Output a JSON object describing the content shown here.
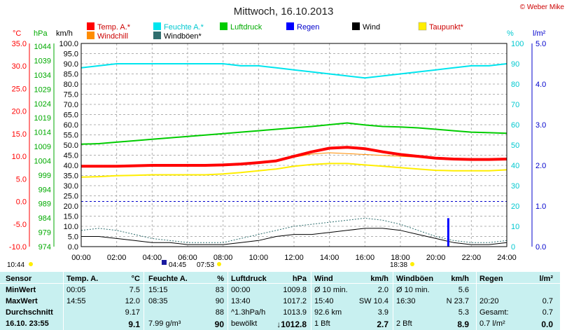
{
  "title": "Mittwoch, 16.10.2013",
  "copyright": "© Weber Mike",
  "unit_labels": {
    "temp": "°C",
    "press": "hPa",
    "wind": "km/h",
    "hum": "%",
    "rain": "l/m²"
  },
  "legend": [
    {
      "label": "Temp. A.*",
      "color": "#ff0000"
    },
    {
      "label": "Feuchte A.*",
      "color": "#00e5ee"
    },
    {
      "label": "Luftdruck",
      "color": "#00cc00"
    },
    {
      "label": "Regen",
      "color": "#0000ff"
    },
    {
      "label": "Wind",
      "color": "#000000"
    },
    {
      "label": "Taupunkt*",
      "color": "#ffee00"
    },
    {
      "label": "Windchill",
      "color": "#ff8c00"
    },
    {
      "label": "Windböen*",
      "color": "#2f6f6f"
    }
  ],
  "sun_times": {
    "sunrise": "07:53",
    "sunset": "18:38",
    "moonrise": "04:45",
    "moonset": "10:44"
  },
  "chart_data": {
    "type": "line",
    "x": [
      0,
      1,
      2,
      3,
      4,
      5,
      6,
      7,
      8,
      9,
      10,
      11,
      12,
      13,
      14,
      15,
      16,
      17,
      18,
      19,
      20,
      21,
      22,
      23,
      24
    ],
    "xtick_labels": [
      "00:00",
      "02:00",
      "04:00",
      "06:00",
      "08:00",
      "10:00",
      "12:00",
      "14:00",
      "16:00",
      "18:00",
      "20:00",
      "22:00",
      "24:00"
    ],
    "axes": {
      "temp": {
        "label": "°C",
        "range": [
          -10,
          35
        ],
        "ticks": [
          "35.0",
          "30.0",
          "25.0",
          "20.0",
          "15.0",
          "10.0",
          "5.0",
          "0.0",
          "-5.0",
          "-10.0"
        ]
      },
      "press": {
        "label": "hPa",
        "range": [
          974,
          1045
        ],
        "ticks": [
          "1044",
          "1039",
          "1034",
          "1029",
          "1024",
          "1019",
          "1014",
          "1009",
          "1004",
          "999",
          "994",
          "989",
          "984",
          "979",
          "974"
        ]
      },
      "wind": {
        "label": "km/h",
        "range": [
          0,
          100
        ],
        "ticks": [
          "100.0",
          "95.0",
          "90.0",
          "85.0",
          "80.0",
          "75.0",
          "70.0",
          "65.0",
          "60.0",
          "55.0",
          "50.0",
          "45.0",
          "40.0",
          "35.0",
          "30.0",
          "25.0",
          "20.0",
          "15.0",
          "10.0",
          "5.0",
          "0.0"
        ]
      },
      "hum": {
        "label": "%",
        "range": [
          0,
          100
        ],
        "ticks": [
          "100",
          "90",
          "80",
          "70",
          "60",
          "50",
          "40",
          "30",
          "20",
          "10",
          "0"
        ]
      },
      "rain": {
        "label": "l/m²",
        "range": [
          0,
          5
        ],
        "ticks": [
          "5.0",
          "4.0",
          "3.0",
          "2.0",
          "1.0",
          "0.0"
        ]
      }
    },
    "series": [
      {
        "name": "Temp. A.*",
        "axis": "temp",
        "color": "#ff0000",
        "values": [
          7.8,
          7.8,
          7.8,
          7.9,
          8.0,
          8.0,
          8.0,
          8.0,
          8.1,
          8.3,
          8.6,
          9.0,
          10.0,
          11.0,
          11.8,
          12.0,
          11.7,
          11.0,
          10.4,
          10.0,
          9.6,
          9.4,
          9.3,
          9.3,
          9.4
        ]
      },
      {
        "name": "Feuchte A.*",
        "axis": "hum",
        "color": "#00e5ee",
        "values": [
          88,
          89,
          90,
          90,
          90,
          90,
          90,
          90,
          90,
          89,
          89,
          88,
          87,
          86,
          85,
          84,
          83,
          84,
          85,
          86,
          87,
          88,
          89,
          89,
          90
        ]
      },
      {
        "name": "Luftdruck",
        "axis": "press",
        "color": "#00cc00",
        "values": [
          1009.8,
          1010.0,
          1010.5,
          1011.0,
          1011.5,
          1012.0,
          1012.5,
          1013.0,
          1013.5,
          1014.0,
          1014.5,
          1015.0,
          1015.5,
          1016.0,
          1016.6,
          1017.2,
          1016.5,
          1016.0,
          1015.8,
          1015.5,
          1015.0,
          1014.5,
          1014.0,
          1013.8,
          1013.6
        ]
      },
      {
        "name": "Taupunkt*",
        "axis": "temp",
        "color": "#ffee00",
        "values": [
          5.4,
          5.5,
          5.7,
          5.8,
          5.9,
          5.9,
          5.9,
          5.9,
          6.1,
          6.4,
          6.8,
          7.2,
          7.8,
          8.2,
          8.4,
          8.4,
          8.1,
          7.8,
          7.5,
          7.2,
          6.9,
          6.8,
          6.8,
          6.8,
          7.0
        ]
      },
      {
        "name": "Windchill",
        "axis": "temp",
        "color": "#ff8c00",
        "values": [
          7.8,
          7.8,
          7.8,
          7.9,
          8.0,
          8.0,
          8.0,
          8.0,
          8.1,
          8.3,
          8.6,
          9.0,
          9.8,
          10.5,
          10.8,
          10.6,
          10.4,
          10.2,
          10.0,
          9.8,
          9.6,
          9.4,
          9.3,
          9.3,
          9.4
        ]
      },
      {
        "name": "Wind",
        "axis": "wind",
        "color": "#000000",
        "values": [
          5,
          5,
          4,
          3,
          2,
          2,
          1,
          1,
          1,
          2,
          3,
          5,
          6,
          6,
          7,
          8,
          9,
          9,
          8,
          6,
          4,
          2,
          1,
          1,
          2
        ]
      },
      {
        "name": "Windböen*",
        "axis": "wind",
        "color": "#2f6f6f",
        "values": [
          8,
          9,
          8,
          6,
          4,
          3,
          2,
          2,
          2,
          4,
          6,
          8,
          10,
          11,
          12,
          13,
          14,
          13,
          11,
          8,
          5,
          3,
          2,
          2,
          3
        ]
      }
    ],
    "rain_events": [
      {
        "x": 20.7,
        "value": 0.7
      }
    ]
  },
  "stats": {
    "headers": [
      "Sensor",
      "Temp. A.",
      "°C",
      "Feuchte A.",
      "%",
      "Luftdruck",
      "hPa",
      "Wind",
      "km/h",
      "Windböen",
      "km/h",
      "Regen",
      "l/m²"
    ],
    "rows": [
      {
        "label": "MinWert",
        "cells": [
          "00:05",
          "7.5",
          "15:15",
          "83",
          "00:00",
          "1009.8",
          "Ø 10 min.",
          "2.0",
          "Ø 10 min.",
          "5.6",
          "",
          ""
        ]
      },
      {
        "label": "MaxWert",
        "cells": [
          "14:55",
          "12.0",
          "08:35",
          "90",
          "13:40",
          "1017.2",
          "15:40",
          "SW 10.4",
          "16:30",
          "N 23.7",
          "20:20",
          "0.7"
        ]
      },
      {
        "label": "Durchschnitt",
        "cells": [
          "",
          "9.17",
          "",
          "88",
          "^1.3hPa/h",
          "1013.9",
          "92.6 km",
          "3.9",
          "",
          "5.3",
          "Gesamt:",
          "0.7"
        ]
      },
      {
        "label": "16.10. 23:55",
        "cells": [
          "",
          "9.1",
          "7.99 g/m³",
          "90",
          "bewölkt",
          "↓1012.8",
          "1 Bft",
          "2.7",
          "2 Bft",
          "8.9",
          "0.7 l/m²",
          "0.0"
        ]
      }
    ]
  }
}
